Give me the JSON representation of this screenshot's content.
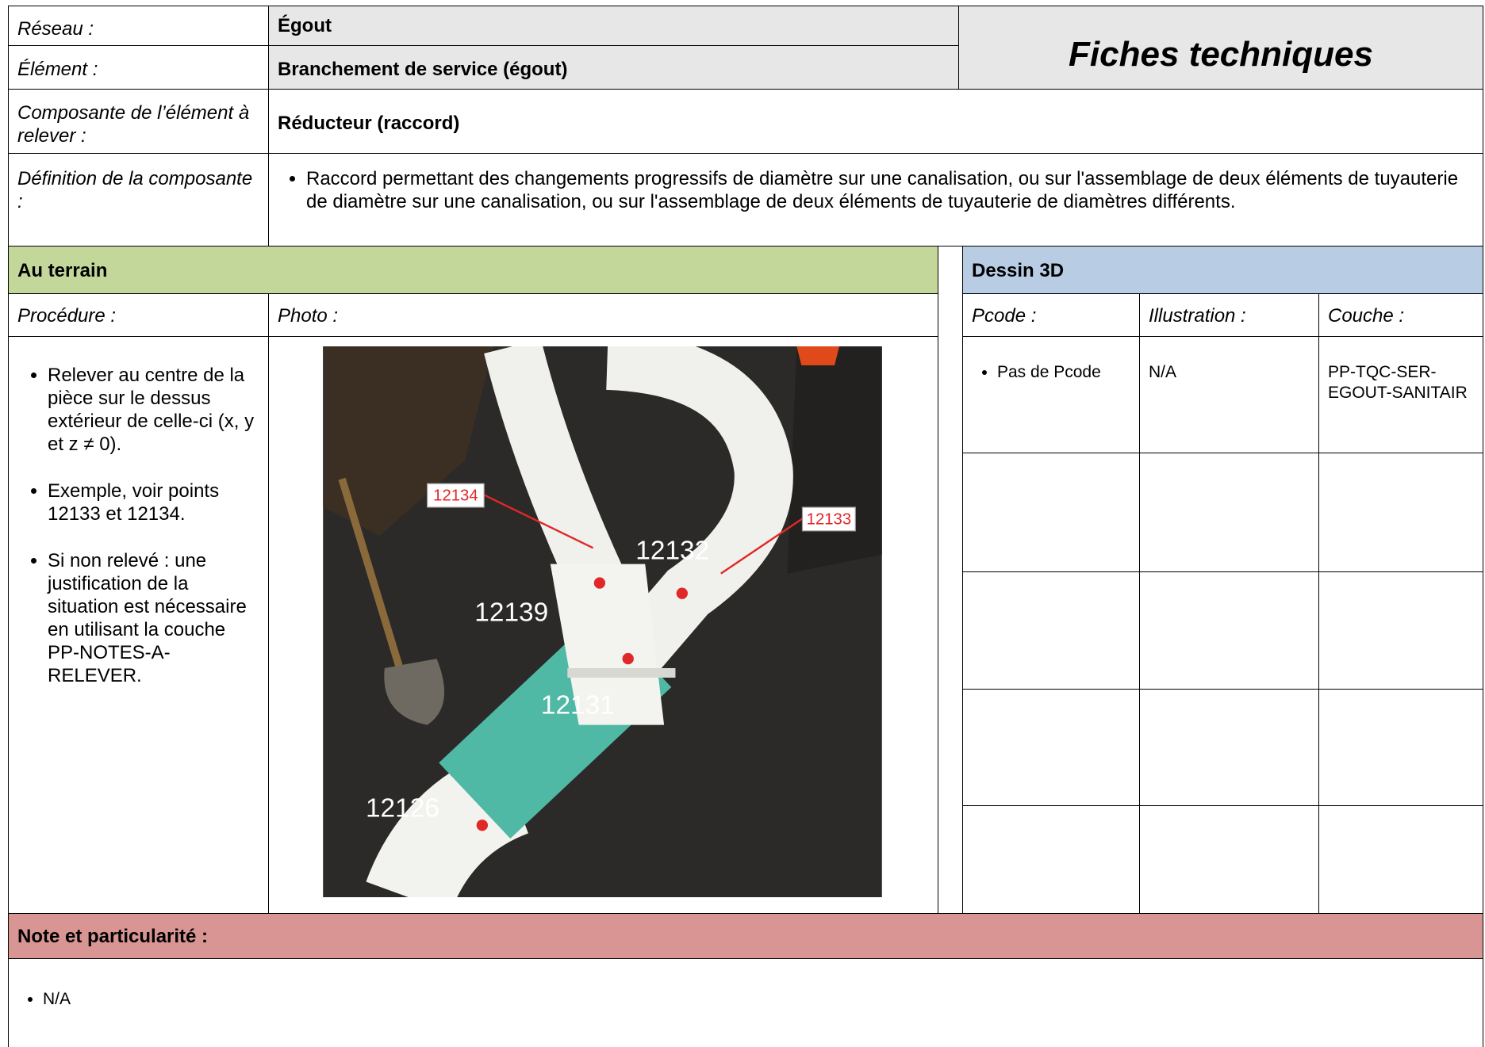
{
  "header": {
    "reseau_label": "Réseau :",
    "reseau": "Égout",
    "element_label": "Élément :",
    "element": "Branchement de service (égout)",
    "title": "Fiches techniques"
  },
  "composante": {
    "label": "Composante de l’élément à relever :",
    "value": "Réducteur (raccord)"
  },
  "definition": {
    "label": "Définition de la composante :",
    "items": [
      "Raccord permettant des changements progressifs de diamètre sur une canalisation, ou sur l'assemblage de deux éléments de tuyauterie de diamètre sur une canalisation, ou sur l'assemblage de deux éléments de tuyauterie de diamètres différents."
    ]
  },
  "terrain": {
    "title": "Au terrain",
    "procedure_label": "Procédure :",
    "photo_label": "Photo :",
    "procedure": [
      "Relever au centre de la pièce sur le dessus extérieur de celle-ci (x, y et z ≠ 0).",
      "Exemple, voir points 12133 et 12134.",
      "Si non relevé : une justification de la situation est nécessaire en utilisant la couche PP-NOTES-A-RELEVER."
    ],
    "photo_labels": [
      "12134",
      "12133",
      "12132",
      "12139",
      "12131",
      "12126"
    ]
  },
  "dessin": {
    "title": "Dessin 3D",
    "columns": [
      "Pcode :",
      "Illustration :",
      "Couche :"
    ],
    "rows": [
      [
        "Pas de Pcode",
        "N/A",
        "PP-TQC-SER-EGOUT-SANITAIR"
      ]
    ]
  },
  "note": {
    "title": "Note et particularité :",
    "items": [
      "N/A"
    ]
  }
}
